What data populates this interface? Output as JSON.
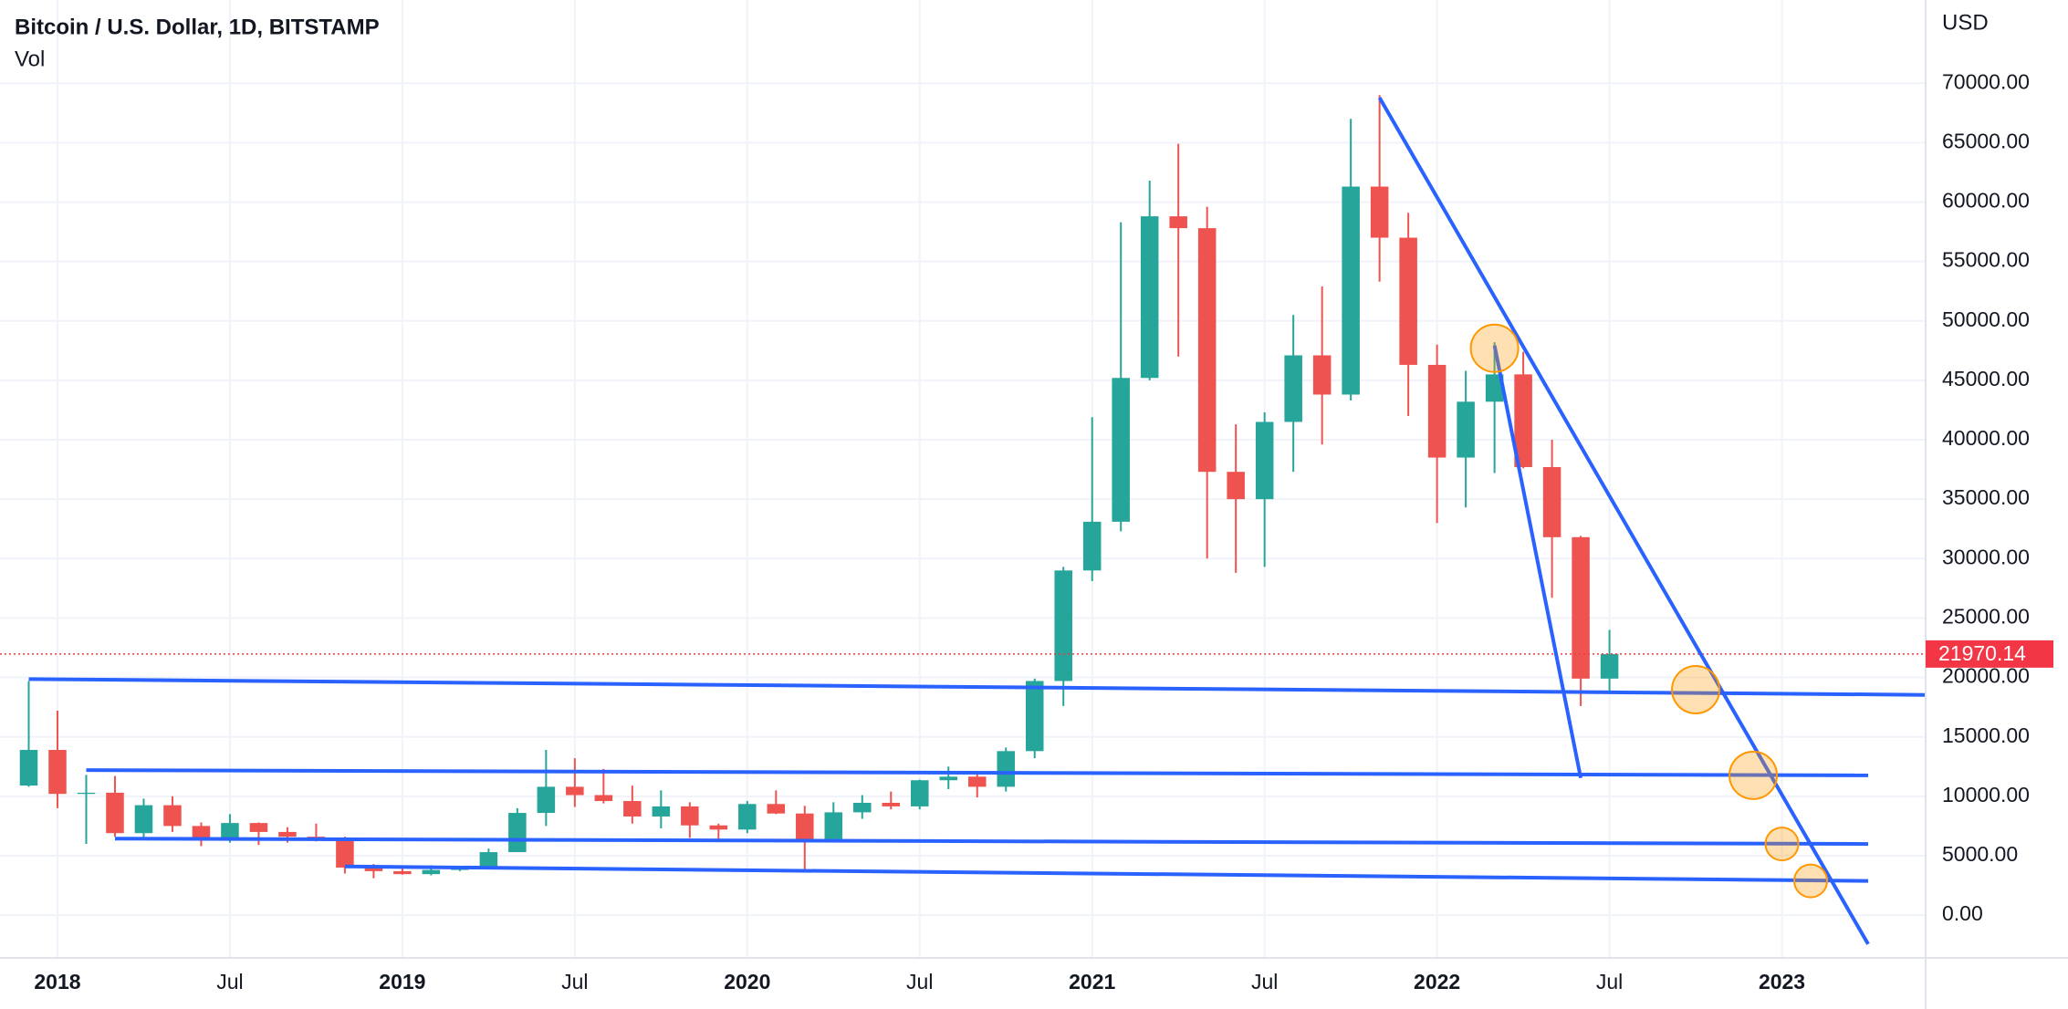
{
  "chart_data": {
    "type": "candlestick",
    "title": "Bitcoin / U.S. Dollar, 1D, BITSTAMP",
    "subtitle": "Vol",
    "currency": "USD",
    "x": [
      "2017-12",
      "2018-01",
      "2018-02",
      "2018-03",
      "2018-04",
      "2018-05",
      "2018-06",
      "2018-07",
      "2018-08",
      "2018-09",
      "2018-10",
      "2018-11",
      "2018-12",
      "2019-01",
      "2019-02",
      "2019-03",
      "2019-04",
      "2019-05",
      "2019-06",
      "2019-07",
      "2019-08",
      "2019-09",
      "2019-10",
      "2019-11",
      "2019-12",
      "2020-01",
      "2020-02",
      "2020-03",
      "2020-04",
      "2020-05",
      "2020-06",
      "2020-07",
      "2020-08",
      "2020-09",
      "2020-10",
      "2020-11",
      "2020-12",
      "2021-01",
      "2021-02",
      "2021-03",
      "2021-04",
      "2021-05",
      "2021-06",
      "2021-07",
      "2021-08",
      "2021-09",
      "2021-10",
      "2021-11",
      "2021-12",
      "2022-01",
      "2022-02",
      "2022-03",
      "2022-04",
      "2022-05",
      "2022-06",
      "2022-07"
    ],
    "open": [
      10900,
      13900,
      10200,
      10300,
      6900,
      9250,
      7500,
      6400,
      7750,
      7000,
      6600,
      6300,
      4000,
      3700,
      3450,
      3800,
      4100,
      5300,
      8600,
      10800,
      10100,
      9600,
      8300,
      9150,
      7550,
      7200,
      9350,
      8550,
      6400,
      8650,
      9450,
      9150,
      11350,
      11650,
      10800,
      13800,
      19700,
      29000,
      33100,
      45200,
      58800,
      57800,
      37300,
      35000,
      41500,
      47100,
      43800,
      61300,
      57000,
      46300,
      38500,
      43200,
      45500,
      37700,
      31800,
      19900
    ],
    "high": [
      19700,
      17200,
      11800,
      11700,
      9800,
      10000,
      7800,
      8500,
      7800,
      7400,
      7700,
      6600,
      4300,
      4100,
      4200,
      4100,
      5600,
      9000,
      13900,
      13200,
      12300,
      10900,
      10500,
      9500,
      7700,
      9600,
      10500,
      9200,
      9500,
      10100,
      10400,
      11400,
      12500,
      12100,
      14100,
      19900,
      29300,
      41900,
      58300,
      61800,
      64900,
      59600,
      41300,
      42300,
      50500,
      52900,
      67000,
      69000,
      59100,
      48000,
      45800,
      48200,
      47400,
      40000,
      31900,
      24000
    ],
    "low": [
      10800,
      9000,
      6000,
      6600,
      6500,
      7000,
      5800,
      6100,
      5900,
      6100,
      6200,
      3500,
      3100,
      3400,
      3350,
      3700,
      4050,
      5300,
      7500,
      9100,
      9400,
      7700,
      7300,
      6500,
      6400,
      6900,
      8500,
      3800,
      6200,
      8100,
      8900,
      8900,
      10600,
      9900,
      10400,
      13200,
      17600,
      28100,
      32300,
      45000,
      47000,
      30000,
      28800,
      29300,
      37300,
      39600,
      43300,
      53300,
      42000,
      33000,
      34300,
      37200,
      37600,
      26700,
      17600,
      18800
    ],
    "close": [
      13900,
      10200,
      10300,
      6900,
      9250,
      7500,
      6400,
      7750,
      7000,
      6600,
      6300,
      4000,
      3700,
      3450,
      3800,
      4100,
      5300,
      8600,
      10800,
      10100,
      9600,
      8300,
      9150,
      7550,
      7200,
      9350,
      8550,
      6400,
      8650,
      9450,
      9150,
      11350,
      11650,
      10800,
      13800,
      19700,
      29000,
      33100,
      45200,
      58800,
      57800,
      37300,
      35000,
      41500,
      47100,
      43800,
      61300,
      57000,
      46300,
      38500,
      43200,
      45500,
      37700,
      31800,
      19900,
      21970.14
    ],
    "up_color": "#26a69a",
    "down_color": "#ef5350",
    "last_price": 21970.14,
    "last_price_color": "#f23645",
    "xlim": [
      "2017-11",
      "2023-06"
    ],
    "xticks": [
      {
        "value": "2018-01",
        "label": "2018"
      },
      {
        "value": "2018-07",
        "label": "Jul"
      },
      {
        "value": "2019-01",
        "label": "2019"
      },
      {
        "value": "2019-07",
        "label": "Jul"
      },
      {
        "value": "2020-01",
        "label": "2020"
      },
      {
        "value": "2020-07",
        "label": "Jul"
      },
      {
        "value": "2021-01",
        "label": "2021"
      },
      {
        "value": "2021-07",
        "label": "Jul"
      },
      {
        "value": "2022-01",
        "label": "2022"
      },
      {
        "value": "2022-07",
        "label": "Jul"
      },
      {
        "value": "2023-01",
        "label": "2023"
      }
    ],
    "ylim": [
      -3600,
      77000
    ],
    "yticks": [
      {
        "value": 0,
        "label": "0.00"
      },
      {
        "value": 5000,
        "label": "5000.00"
      },
      {
        "value": 10000,
        "label": "10000.00"
      },
      {
        "value": 15000,
        "label": "15000.00"
      },
      {
        "value": 20000,
        "label": "20000.00"
      },
      {
        "value": 25000,
        "label": "25000.00"
      },
      {
        "value": 30000,
        "label": "30000.00"
      },
      {
        "value": 35000,
        "label": "35000.00"
      },
      {
        "value": 40000,
        "label": "40000.00"
      },
      {
        "value": 45000,
        "label": "45000.00"
      },
      {
        "value": 50000,
        "label": "50000.00"
      },
      {
        "value": 55000,
        "label": "55000.00"
      },
      {
        "value": 60000,
        "label": "60000.00"
      },
      {
        "value": 65000,
        "label": "65000.00"
      },
      {
        "value": 70000,
        "label": "70000.00"
      }
    ],
    "grid": true,
    "trend_line_color": "#2962ff",
    "trend_lines": [
      {
        "x": [
          "2017-12",
          "2023-06"
        ],
        "y": [
          19860,
          18530
        ]
      },
      {
        "x": [
          "2018-02",
          "2023-04"
        ],
        "y": [
          12200,
          11760
        ]
      },
      {
        "x": [
          "2018-03",
          "2023-04"
        ],
        "y": [
          6440,
          5990
        ]
      },
      {
        "x": [
          "2018-11",
          "2023-04"
        ],
        "y": [
          4100,
          2880
        ]
      },
      {
        "x": [
          "2021-11",
          "2023-04"
        ],
        "y": [
          68780,
          -2440
        ]
      },
      {
        "x": [
          "2022-03",
          "2022-06"
        ],
        "y": [
          47930,
          11540
        ]
      }
    ],
    "marker_color": "#ff9800",
    "markers": {
      "x": [
        "2022-03",
        "2022-10",
        "2022-12",
        "2023-01",
        "2023-02"
      ],
      "y": [
        47700,
        18970,
        11760,
        5990,
        2880
      ]
    }
  }
}
